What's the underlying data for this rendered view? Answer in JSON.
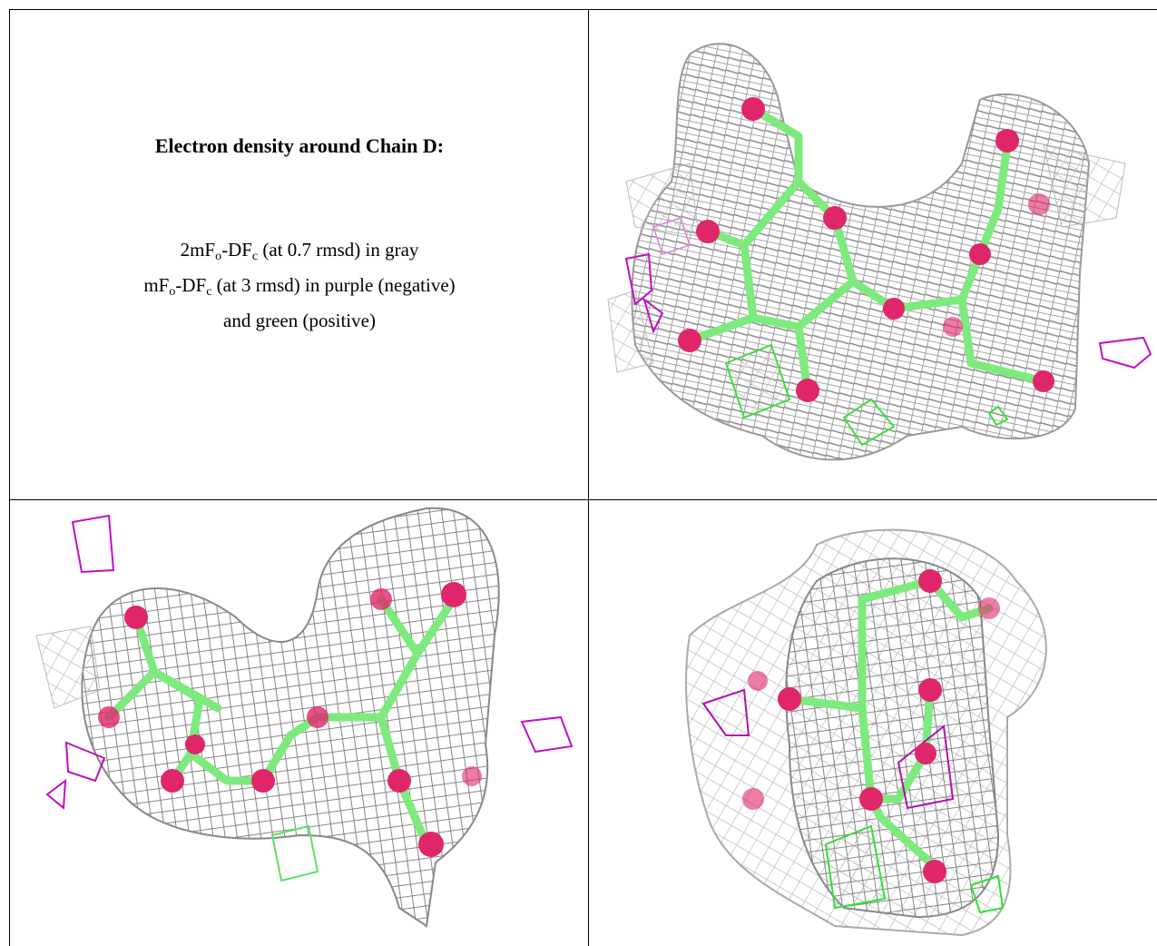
{
  "caption": {
    "title": "Electron density around Chain D:",
    "lines": [
      [
        {
          "text": "2mF"
        },
        {
          "text": "o",
          "sub": true
        },
        {
          "text": "-DF"
        },
        {
          "text": "c",
          "sub": true
        },
        {
          "text": " (at 0.7 rmsd) in gray"
        }
      ],
      [
        {
          "text": "mF"
        },
        {
          "text": "o",
          "sub": true
        },
        {
          "text": "-DF"
        },
        {
          "text": "c",
          "sub": true
        },
        {
          "text": " (at 3 rmsd) in purple (negative)"
        }
      ],
      [
        {
          "text": "and green (positive)"
        }
      ]
    ]
  }
}
